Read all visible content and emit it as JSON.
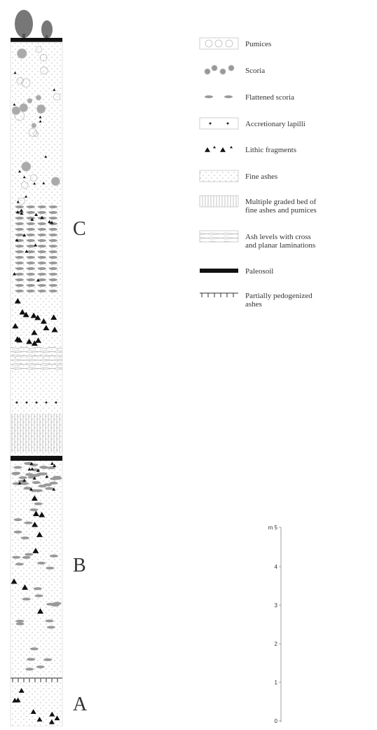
{
  "units": [
    {
      "label": "C"
    },
    {
      "label": "B"
    },
    {
      "label": "A"
    }
  ],
  "legend": [
    {
      "lines": [
        "Pumices"
      ]
    },
    {
      "lines": [
        "Scoria"
      ]
    },
    {
      "lines": [
        "Flattened scoria"
      ]
    },
    {
      "lines": [
        "Accretionary lapilli"
      ]
    },
    {
      "lines": [
        "Lithic fragments"
      ]
    },
    {
      "lines": [
        "Fine ashes"
      ]
    },
    {
      "lines": [
        "Multiple graded bed of",
        "fine ashes and pumices"
      ]
    },
    {
      "lines": [
        "Ash levels with cross",
        "and planar laminations"
      ]
    },
    {
      "lines": [
        "Paleosoil"
      ]
    },
    {
      "lines": [
        "Partially pedogenized",
        "ashes"
      ]
    }
  ],
  "scale": {
    "labels": [
      "m 5",
      "4",
      "3",
      "2",
      "1",
      "0"
    ]
  }
}
